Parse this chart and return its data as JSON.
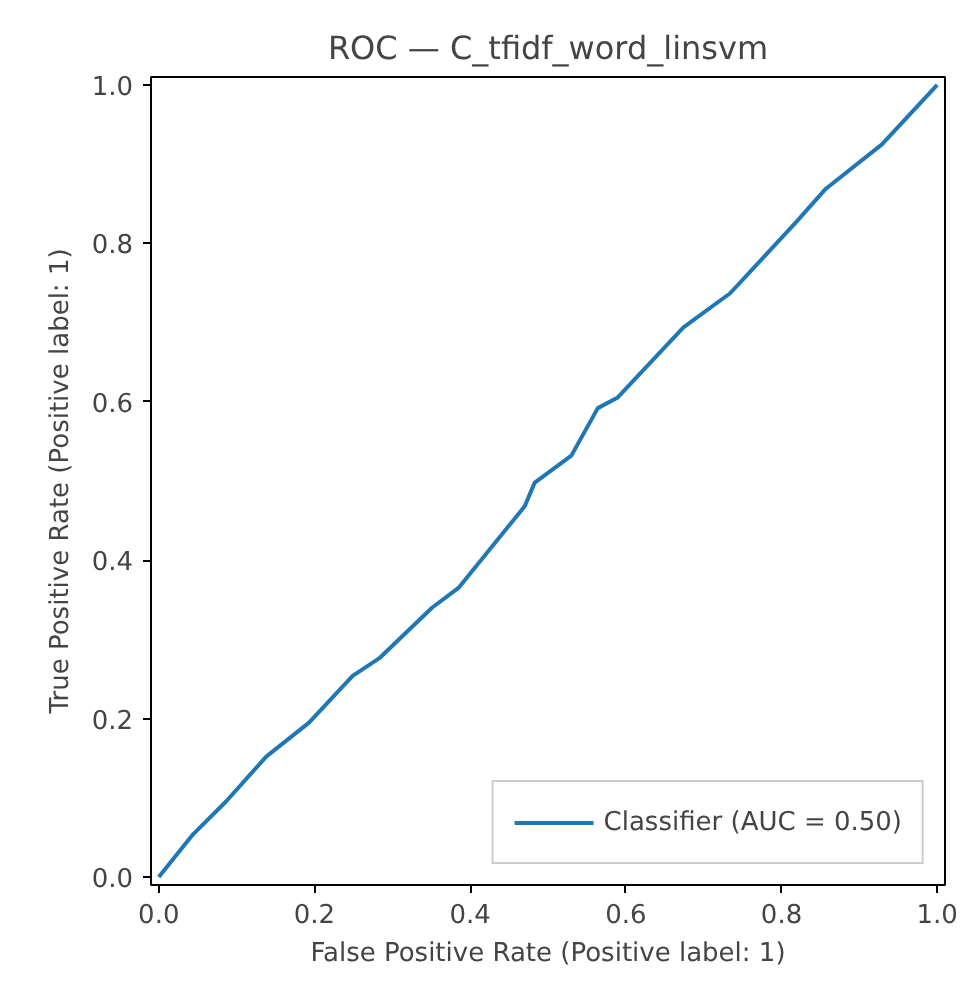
{
  "chart_data": {
    "type": "line",
    "title": "ROC — C_tfidf_word_linsvm",
    "xlabel": "False Positive Rate (Positive label: 1)",
    "ylabel": "True Positive Rate (Positive label: 1)",
    "x": [
      0,
      0.044,
      0.087,
      0.138,
      0.193,
      0.249,
      0.283,
      0.351,
      0.385,
      0.47,
      0.483,
      0.53,
      0.564,
      0.589,
      0.674,
      0.734,
      0.819,
      0.857,
      0.929,
      1
    ],
    "series": [
      {
        "name": "Classifier (AUC = 0.50)",
        "color": "#1f77b4",
        "values": [
          0,
          0.054,
          0.096,
          0.152,
          0.195,
          0.254,
          0.276,
          0.34,
          0.365,
          0.468,
          0.498,
          0.532,
          0.592,
          0.605,
          0.694,
          0.737,
          0.827,
          0.869,
          0.925,
          1
        ]
      }
    ],
    "xlim": [
      -0.01,
      1.01
    ],
    "ylim": [
      -0.01,
      1.01
    ],
    "xticks": [
      {
        "value": 0,
        "label": "0.0"
      },
      {
        "value": 0.2,
        "label": "0.2"
      },
      {
        "value": 0.4,
        "label": "0.4"
      },
      {
        "value": 0.6,
        "label": "0.6"
      },
      {
        "value": 0.8,
        "label": "0.8"
      },
      {
        "value": 1,
        "label": "1.0"
      }
    ],
    "yticks": [
      {
        "value": 0,
        "label": "0.0"
      },
      {
        "value": 0.2,
        "label": "0.2"
      },
      {
        "value": 0.4,
        "label": "0.4"
      },
      {
        "value": 0.6,
        "label": "0.6"
      },
      {
        "value": 0.8,
        "label": "0.8"
      },
      {
        "value": 1,
        "label": "1.0"
      }
    ],
    "legend": "bottom right",
    "grid": false
  }
}
